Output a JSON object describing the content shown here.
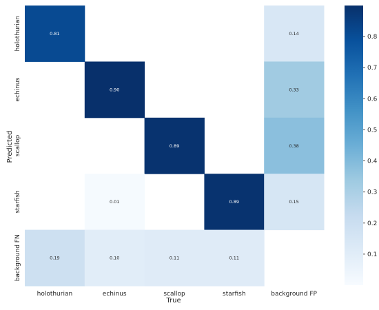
{
  "chart_data": {
    "type": "heatmap",
    "x_categories": [
      "holothurian",
      "echinus",
      "scallop",
      "starfish",
      "background FP"
    ],
    "y_categories": [
      "holothurian",
      "echinus",
      "scallop",
      "starfish",
      "background FN"
    ],
    "xlabel": "True",
    "ylabel": "Predicted",
    "values": [
      [
        0.81,
        null,
        null,
        null,
        0.14
      ],
      [
        null,
        0.9,
        null,
        null,
        0.33
      ],
      [
        null,
        null,
        0.89,
        null,
        0.38
      ],
      [
        null,
        0.01,
        null,
        0.89,
        0.15
      ],
      [
        0.19,
        0.1,
        0.11,
        0.11,
        null
      ]
    ],
    "labels": [
      [
        "0.81",
        "",
        "",
        "",
        "0.14"
      ],
      [
        "",
        "0.90",
        "",
        "",
        "0.33"
      ],
      [
        "",
        "",
        "0.89",
        "",
        "0.38"
      ],
      [
        "",
        "0.01",
        "",
        "0.89",
        "0.15"
      ],
      [
        "0.19",
        "0.10",
        "0.11",
        "0.11",
        ""
      ]
    ],
    "colorbar": {
      "range": [
        0,
        0.9
      ],
      "ticks": [
        0.1,
        0.2,
        0.3,
        0.4,
        0.5,
        0.6,
        0.7,
        0.8
      ],
      "tick_labels": [
        "0.1",
        "0.2",
        "0.3",
        "0.4",
        "0.5",
        "0.6",
        "0.7",
        "0.8"
      ],
      "colormap": "Blues"
    }
  }
}
